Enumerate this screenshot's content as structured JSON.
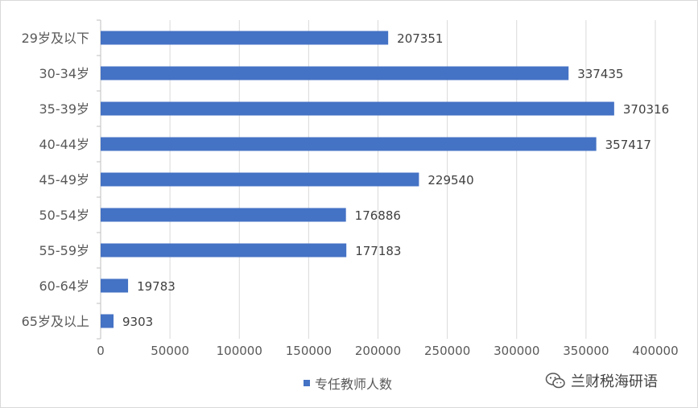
{
  "chart_data": {
    "type": "bar",
    "orientation": "horizontal",
    "categories": [
      "29岁及以下",
      "30-34岁",
      "35-39岁",
      "40-44岁",
      "45-49岁",
      "50-54岁",
      "55-59岁",
      "60-64岁",
      "65岁及以上"
    ],
    "series": [
      {
        "name": "专任教师人数",
        "values": [
          207351,
          337435,
          370316,
          357417,
          229540,
          176886,
          177183,
          19783,
          9303
        ]
      }
    ],
    "data_labels": [
      "207351",
      "337435",
      "370316",
      "357417",
      "229540",
      "176886",
      "177183",
      "19783",
      "9303"
    ],
    "x_ticks": [
      0,
      50000,
      100000,
      150000,
      200000,
      250000,
      300000,
      350000,
      400000
    ],
    "x_tick_labels": [
      "0",
      "50000",
      "100000",
      "150000",
      "200000",
      "250000",
      "300000",
      "350000",
      "400000"
    ],
    "xlim": [
      0,
      400000
    ],
    "grid": "vertical",
    "legend": "bottom",
    "bar_color": "#4472C4"
  },
  "watermark": {
    "text": "兰财税海研语",
    "icon": "wechat-icon"
  }
}
